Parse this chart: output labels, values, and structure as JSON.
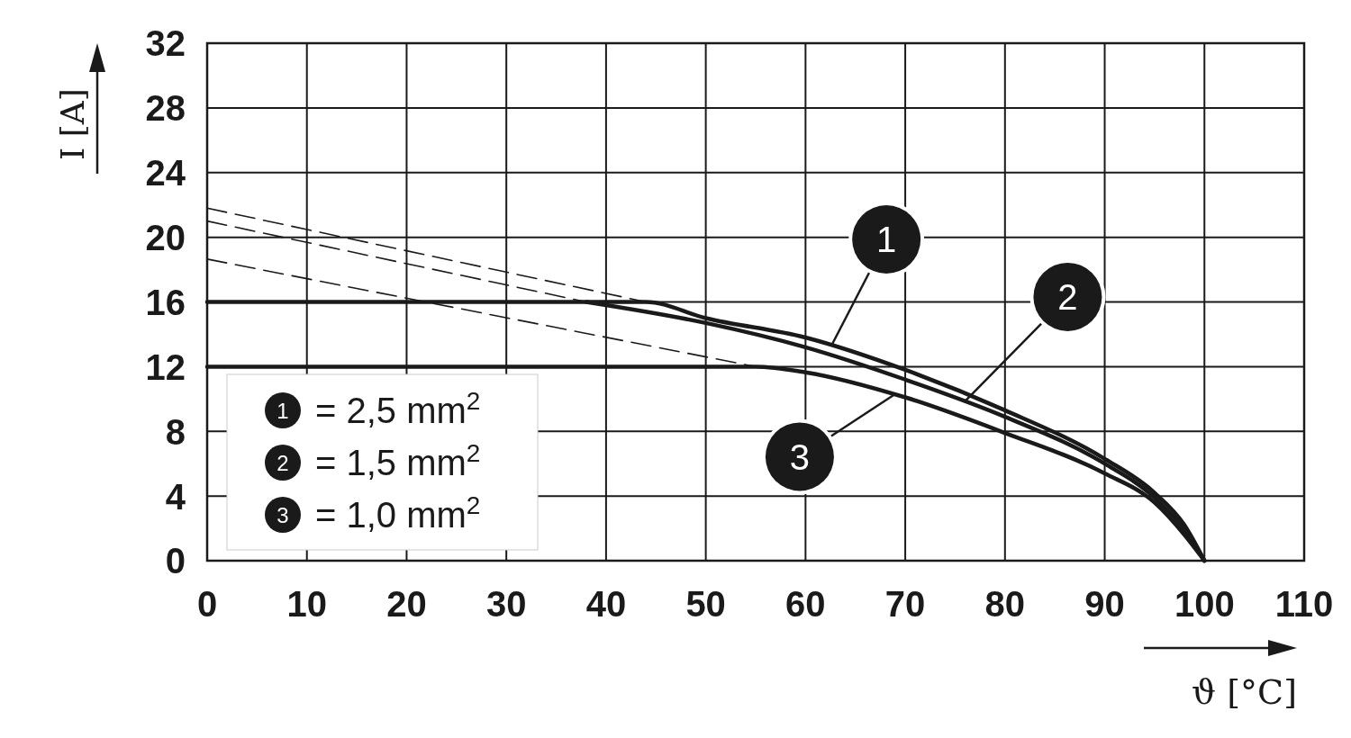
{
  "chart_data": {
    "type": "line",
    "xlabel": "ϑ [°C]",
    "ylabel": "I [A]",
    "xlim": [
      0,
      110
    ],
    "ylim": [
      0,
      32
    ],
    "xticks": [
      0,
      10,
      20,
      30,
      40,
      50,
      60,
      70,
      80,
      90,
      100,
      110
    ],
    "yticks": [
      0,
      4,
      8,
      12,
      16,
      20,
      24,
      28,
      32
    ],
    "grid": true,
    "legend": "bottom left",
    "marker": "none",
    "series": [
      {
        "name": "= 2,5 mm$^{2}$",
        "color": "#1a1a1a",
        "line_style": "solid",
        "x": [
          0,
          44,
          50,
          60,
          70,
          80,
          90,
          95,
          98,
          100
        ],
        "values": [
          16,
          16,
          15.0,
          13.8,
          11.8,
          9.3,
          6.3,
          4.2,
          2.2,
          0
        ]
      },
      {
        "name": "= 1,5 mm$^{2}$",
        "color": "#1a1a1a",
        "line_style": "solid",
        "x": [
          38,
          50,
          60,
          70,
          80,
          90,
          95,
          98,
          100
        ],
        "values": [
          16,
          14.7,
          13.2,
          11.2,
          8.9,
          6.0,
          3.9,
          1.9,
          0
        ]
      },
      {
        "name": "= 1,0 mm$^{2}$",
        "color": "#1a1a1a",
        "line_style": "solid",
        "x": [
          0,
          55,
          60,
          70,
          80,
          90,
          95,
          98,
          100
        ],
        "values": [
          12,
          12,
          11.65,
          10.1,
          7.9,
          5.4,
          3.6,
          1.6,
          0
        ]
      },
      {
        "color": "#1a1a1a",
        "line_style": "dashed",
        "x": [
          0,
          44
        ],
        "values": [
          21.8,
          16
        ]
      },
      {
        "color": "#1a1a1a",
        "line_style": "dashed",
        "x": [
          0,
          38
        ],
        "values": [
          21,
          16
        ]
      },
      {
        "color": "#1a1a1a",
        "line_style": "dashed",
        "x": [
          0,
          55
        ],
        "values": [
          18.65,
          12
        ]
      }
    ],
    "annotations": [
      {
        "text": "1",
        "x": 62.6,
        "y": 13.3
      },
      {
        "text": "2",
        "x": 75.9,
        "y": 9.8
      },
      {
        "text": "3",
        "x": 68.9,
        "y": 10.27
      }
    ]
  }
}
